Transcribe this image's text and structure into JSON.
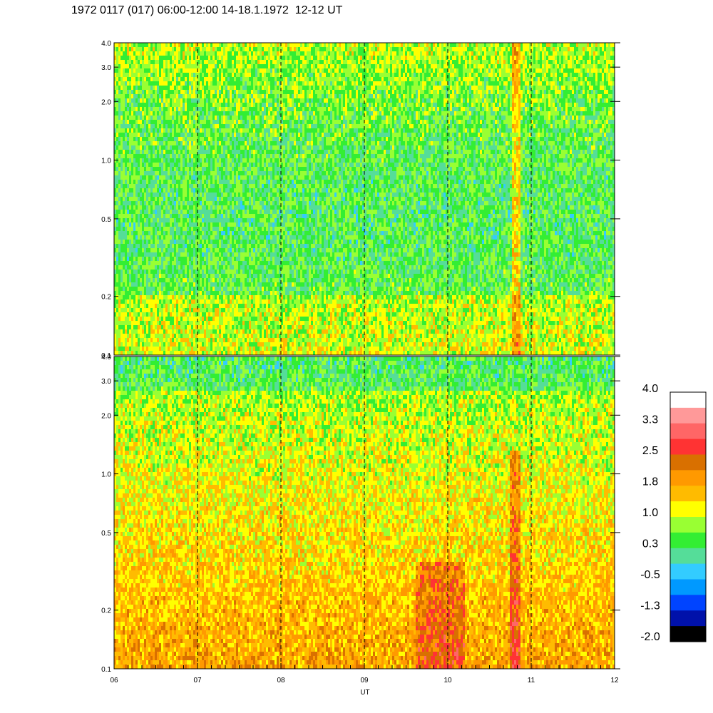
{
  "title": "1972 0117 (017) 06:00-12:00 14-18.1.1972  12-12 UT",
  "chart_data": [
    {
      "type": "heatmap",
      "panel": "upper",
      "x_range": [
        6,
        12
      ],
      "y_range": [
        0.1,
        4.0
      ],
      "y_scale": "log",
      "x_ticks": [
        "06",
        "07",
        "08",
        "09",
        "10",
        "11",
        "12"
      ],
      "y_ticks": [
        {
          "value": 0.1,
          "label": "0.1"
        },
        {
          "value": 0.2,
          "label": "0.2"
        },
        {
          "value": 0.5,
          "label": "0.5"
        },
        {
          "value": 1.0,
          "label": "1.0"
        },
        {
          "value": 2.0,
          "label": "2.0"
        },
        {
          "value": 3.0,
          "label": "3.0"
        },
        {
          "value": 4.0,
          "label": "4.0"
        }
      ],
      "dashed_hours": [
        7,
        8,
        9,
        10,
        11
      ],
      "dominant_levels": "mostly 0.3 to 1.0 (green, cyan, light green)"
    },
    {
      "type": "heatmap",
      "panel": "lower",
      "x_range": [
        6,
        12
      ],
      "y_range": [
        0.1,
        4.0
      ],
      "y_scale": "log",
      "xlabel": "UT",
      "x_ticks": [
        "06",
        "07",
        "08",
        "09",
        "10",
        "11",
        "12"
      ],
      "y_ticks": [
        {
          "value": 0.1,
          "label": "0.1"
        },
        {
          "value": 0.2,
          "label": "0.2"
        },
        {
          "value": 0.5,
          "label": "0.5"
        },
        {
          "value": 1.0,
          "label": "1.0"
        },
        {
          "value": 2.0,
          "label": "2.0"
        },
        {
          "value": 3.0,
          "label": "3.0"
        },
        {
          "value": 4.0,
          "label": "4.0"
        }
      ],
      "dashed_hours": [
        7,
        8,
        9,
        10,
        11
      ],
      "dominant_levels": "mostly 1.0 to 2.5 (yellow, orange), red near 10-11 UT at low frequency"
    }
  ],
  "colorbar": {
    "labels": [
      "4.0",
      "3.3",
      "2.5",
      "1.8",
      "1.0",
      "0.3",
      "-0.5",
      "-1.3",
      "-2.0"
    ],
    "colors": [
      "#ffffff",
      "#ff9999",
      "#ff6666",
      "#ff3333",
      "#d97000",
      "#ff9900",
      "#ffbb00",
      "#ffff00",
      "#99ff33",
      "#33ee33",
      "#55dd99",
      "#33ccff",
      "#0099ff",
      "#0044ff",
      "#0011aa",
      "#000000"
    ]
  }
}
